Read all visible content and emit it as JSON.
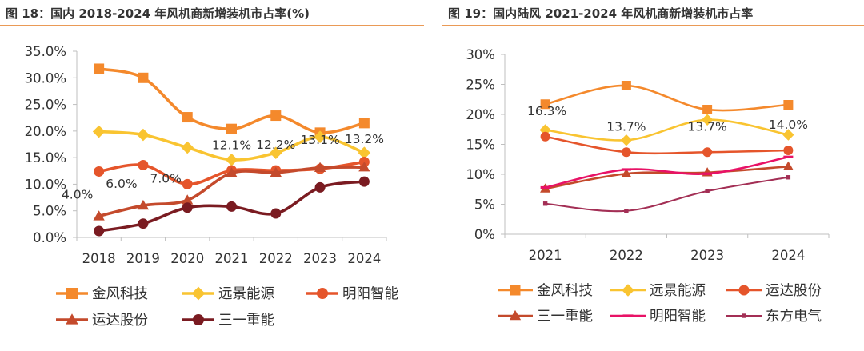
{
  "chart_data": [
    {
      "type": "line",
      "title": "图 18：国内 2018-2024 年风机商新增装机市占率(%)",
      "xlabel": "",
      "ylabel": "",
      "categories": [
        "2018",
        "2019",
        "2020",
        "2021",
        "2022",
        "2023",
        "2024"
      ],
      "ylim": [
        0,
        35
      ],
      "yticks": [
        "0.0%",
        "5.0%",
        "10.0%",
        "15.0%",
        "20.0%",
        "25.0%",
        "30.0%",
        "35.0%"
      ],
      "series": [
        {
          "name": "金风科技",
          "color": "#f4892c",
          "marker": "square",
          "values": [
            31.7,
            30.0,
            22.6,
            20.4,
            22.9,
            19.7,
            21.5
          ]
        },
        {
          "name": "远景能源",
          "color": "#f9c431",
          "marker": "diamond",
          "values": [
            19.9,
            19.3,
            16.9,
            14.6,
            15.9,
            18.9,
            15.9
          ]
        },
        {
          "name": "明阳智能",
          "color": "#e5552b",
          "marker": "circle",
          "values": [
            12.4,
            13.6,
            10.0,
            12.6,
            12.6,
            12.9,
            14.2
          ]
        },
        {
          "name": "运达股份",
          "color": "#c44a2c",
          "marker": "triangle",
          "values": [
            4.0,
            6.0,
            7.0,
            12.1,
            12.2,
            13.1,
            13.2
          ]
        },
        {
          "name": "三一重能",
          "color": "#7a1b21",
          "marker": "circle",
          "values": [
            1.2,
            2.6,
            5.6,
            5.8,
            4.5,
            9.4,
            10.5
          ]
        }
      ],
      "annotations": [
        "4.0%",
        "6.0%",
        "7.0%",
        "12.1%",
        "12.2%",
        "13.1%",
        "13.2%"
      ],
      "legend": "bottom"
    },
    {
      "type": "line",
      "title": "图 19：国内陆风 2021-2024 年风机商新增装机市占率",
      "xlabel": "",
      "ylabel": "",
      "categories": [
        "2021",
        "2022",
        "2023",
        "2024"
      ],
      "ylim": [
        0,
        30
      ],
      "yticks": [
        "0%",
        "5%",
        "10%",
        "15%",
        "20%",
        "25%",
        "30%"
      ],
      "series": [
        {
          "name": "金风科技",
          "color": "#f4892c",
          "marker": "square",
          "values": [
            21.7,
            24.8,
            20.8,
            21.6
          ]
        },
        {
          "name": "远景能源",
          "color": "#f9c431",
          "marker": "diamond",
          "values": [
            17.4,
            15.7,
            19.1,
            16.6
          ]
        },
        {
          "name": "运达股份",
          "color": "#e5552b",
          "marker": "circle",
          "values": [
            16.3,
            13.7,
            13.7,
            14.0
          ]
        },
        {
          "name": "三一重能",
          "color": "#c44a2c",
          "marker": "triangle",
          "values": [
            7.6,
            10.1,
            10.3,
            11.3
          ]
        },
        {
          "name": "明阳智能",
          "color": "#e81266",
          "marker": "dash",
          "values": [
            7.8,
            10.8,
            10.1,
            12.9
          ]
        },
        {
          "name": "东方电气",
          "color": "#a32f55",
          "marker": "smallsquare",
          "values": [
            5.1,
            3.9,
            7.2,
            9.5
          ]
        }
      ],
      "annotations": [
        "16.3%",
        "13.7%",
        "13.7%",
        "14.0%"
      ],
      "legend": "bottom"
    }
  ]
}
